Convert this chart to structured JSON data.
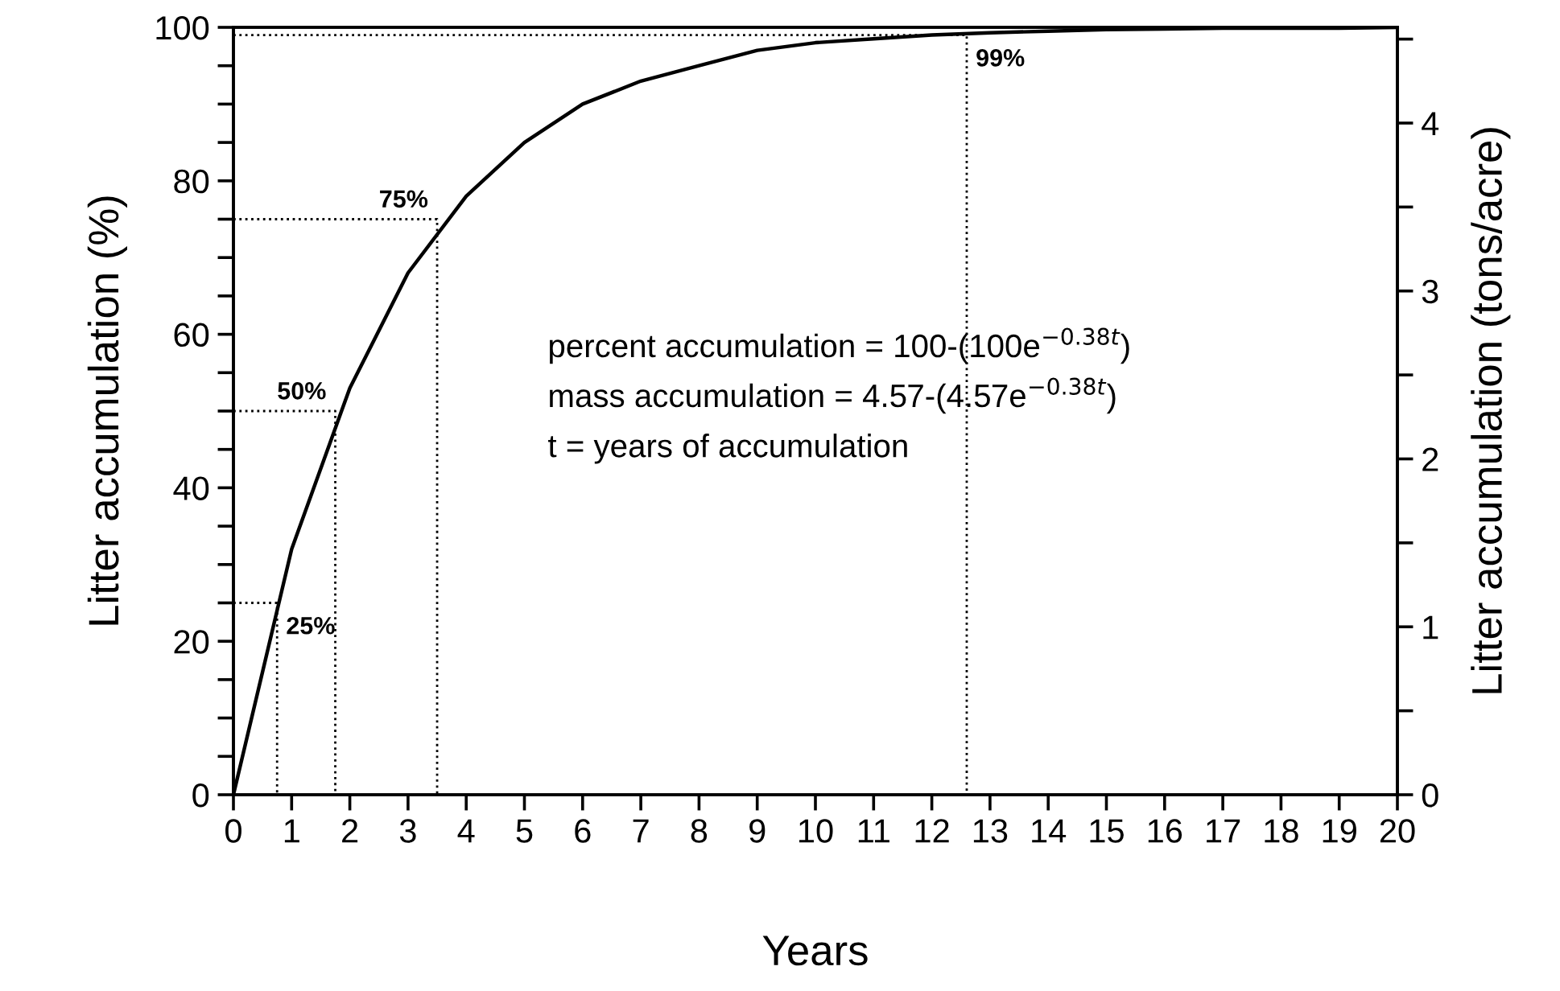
{
  "chart_data": {
    "type": "line",
    "xlabel": "Years",
    "ylabel": "Litter accumulation (%)",
    "y2label": "Litter accumulation (tons/acre)",
    "x": [
      0,
      1,
      2,
      3,
      4,
      5,
      6,
      7,
      8,
      9,
      10,
      11,
      12,
      13,
      14,
      15,
      16,
      17,
      18,
      19,
      20
    ],
    "series": [
      {
        "color": "#000000",
        "line_style": "solid",
        "values": [
          0,
          32,
          53,
          68,
          78,
          85,
          90,
          93,
          95,
          97,
          98,
          98.5,
          99,
          99.3,
          99.5,
          99.7,
          99.8,
          99.9,
          99.9,
          99.9,
          100
        ]
      },
      {
        "color": "#000000",
        "line_style": "dotted",
        "x": [
          0,
          0.75,
          0.75
        ],
        "values": [
          25,
          25,
          0
        ]
      },
      {
        "color": "#000000",
        "line_style": "dotted",
        "x": [
          0,
          1.75,
          1.75
        ],
        "values": [
          50,
          50,
          0
        ]
      },
      {
        "color": "#000000",
        "line_style": "dotted",
        "x": [
          0,
          3.5,
          3.5
        ],
        "values": [
          75,
          75,
          0
        ]
      },
      {
        "color": "#000000",
        "line_style": "dotted",
        "x": [
          0,
          12.6,
          12.6
        ],
        "values": [
          99,
          99,
          0
        ]
      }
    ],
    "annotations": [
      {
        "text": "25%",
        "x": 0.75,
        "y": 25
      },
      {
        "text": "50%",
        "x": 1.75,
        "y": 50
      },
      {
        "text": "75%",
        "x": 3.5,
        "y": 75
      },
      {
        "text": "99%",
        "x": 12.6,
        "y": 99
      },
      "percent accumulation = 100-(100e$^{−0.38t}$)",
      "mass accumulation = 4.57-(4.57e$^{−0.38t}$)",
      "t = years of accumulation"
    ],
    "xlim": [
      0,
      20
    ],
    "xticks": [
      0,
      1,
      2,
      3,
      4,
      5,
      6,
      7,
      8,
      9,
      10,
      11,
      12,
      13,
      14,
      15,
      16,
      17,
      18,
      19,
      20
    ],
    "ylim": [
      0,
      100
    ],
    "yticks": [
      0,
      {
        "value": 5,
        "label": null
      },
      {
        "value": 10,
        "label": null
      },
      {
        "value": 15,
        "label": null
      },
      20,
      {
        "value": 25,
        "label": null
      },
      {
        "value": 30,
        "label": null
      },
      {
        "value": 35,
        "label": null
      },
      40,
      {
        "value": 45,
        "label": null
      },
      {
        "value": 50,
        "label": null
      },
      {
        "value": 55,
        "label": null
      },
      60,
      {
        "value": 65,
        "label": null
      },
      {
        "value": 70,
        "label": null
      },
      {
        "value": 75,
        "label": null
      },
      80,
      {
        "value": 85,
        "label": null
      },
      {
        "value": 90,
        "label": null
      },
      {
        "value": 95,
        "label": null
      },
      100
    ],
    "y2lim": [
      0,
      4.57
    ],
    "y2ticks": [
      0,
      {
        "value": 0.5,
        "label": null
      },
      1,
      {
        "value": 1.5,
        "label": null
      },
      2,
      {
        "value": 2.5,
        "label": null
      },
      3,
      {
        "value": 3.5,
        "label": null
      },
      4,
      {
        "value": 4.5,
        "label": null
      }
    ],
    "grid": false,
    "legend": false,
    "marker": "none"
  }
}
